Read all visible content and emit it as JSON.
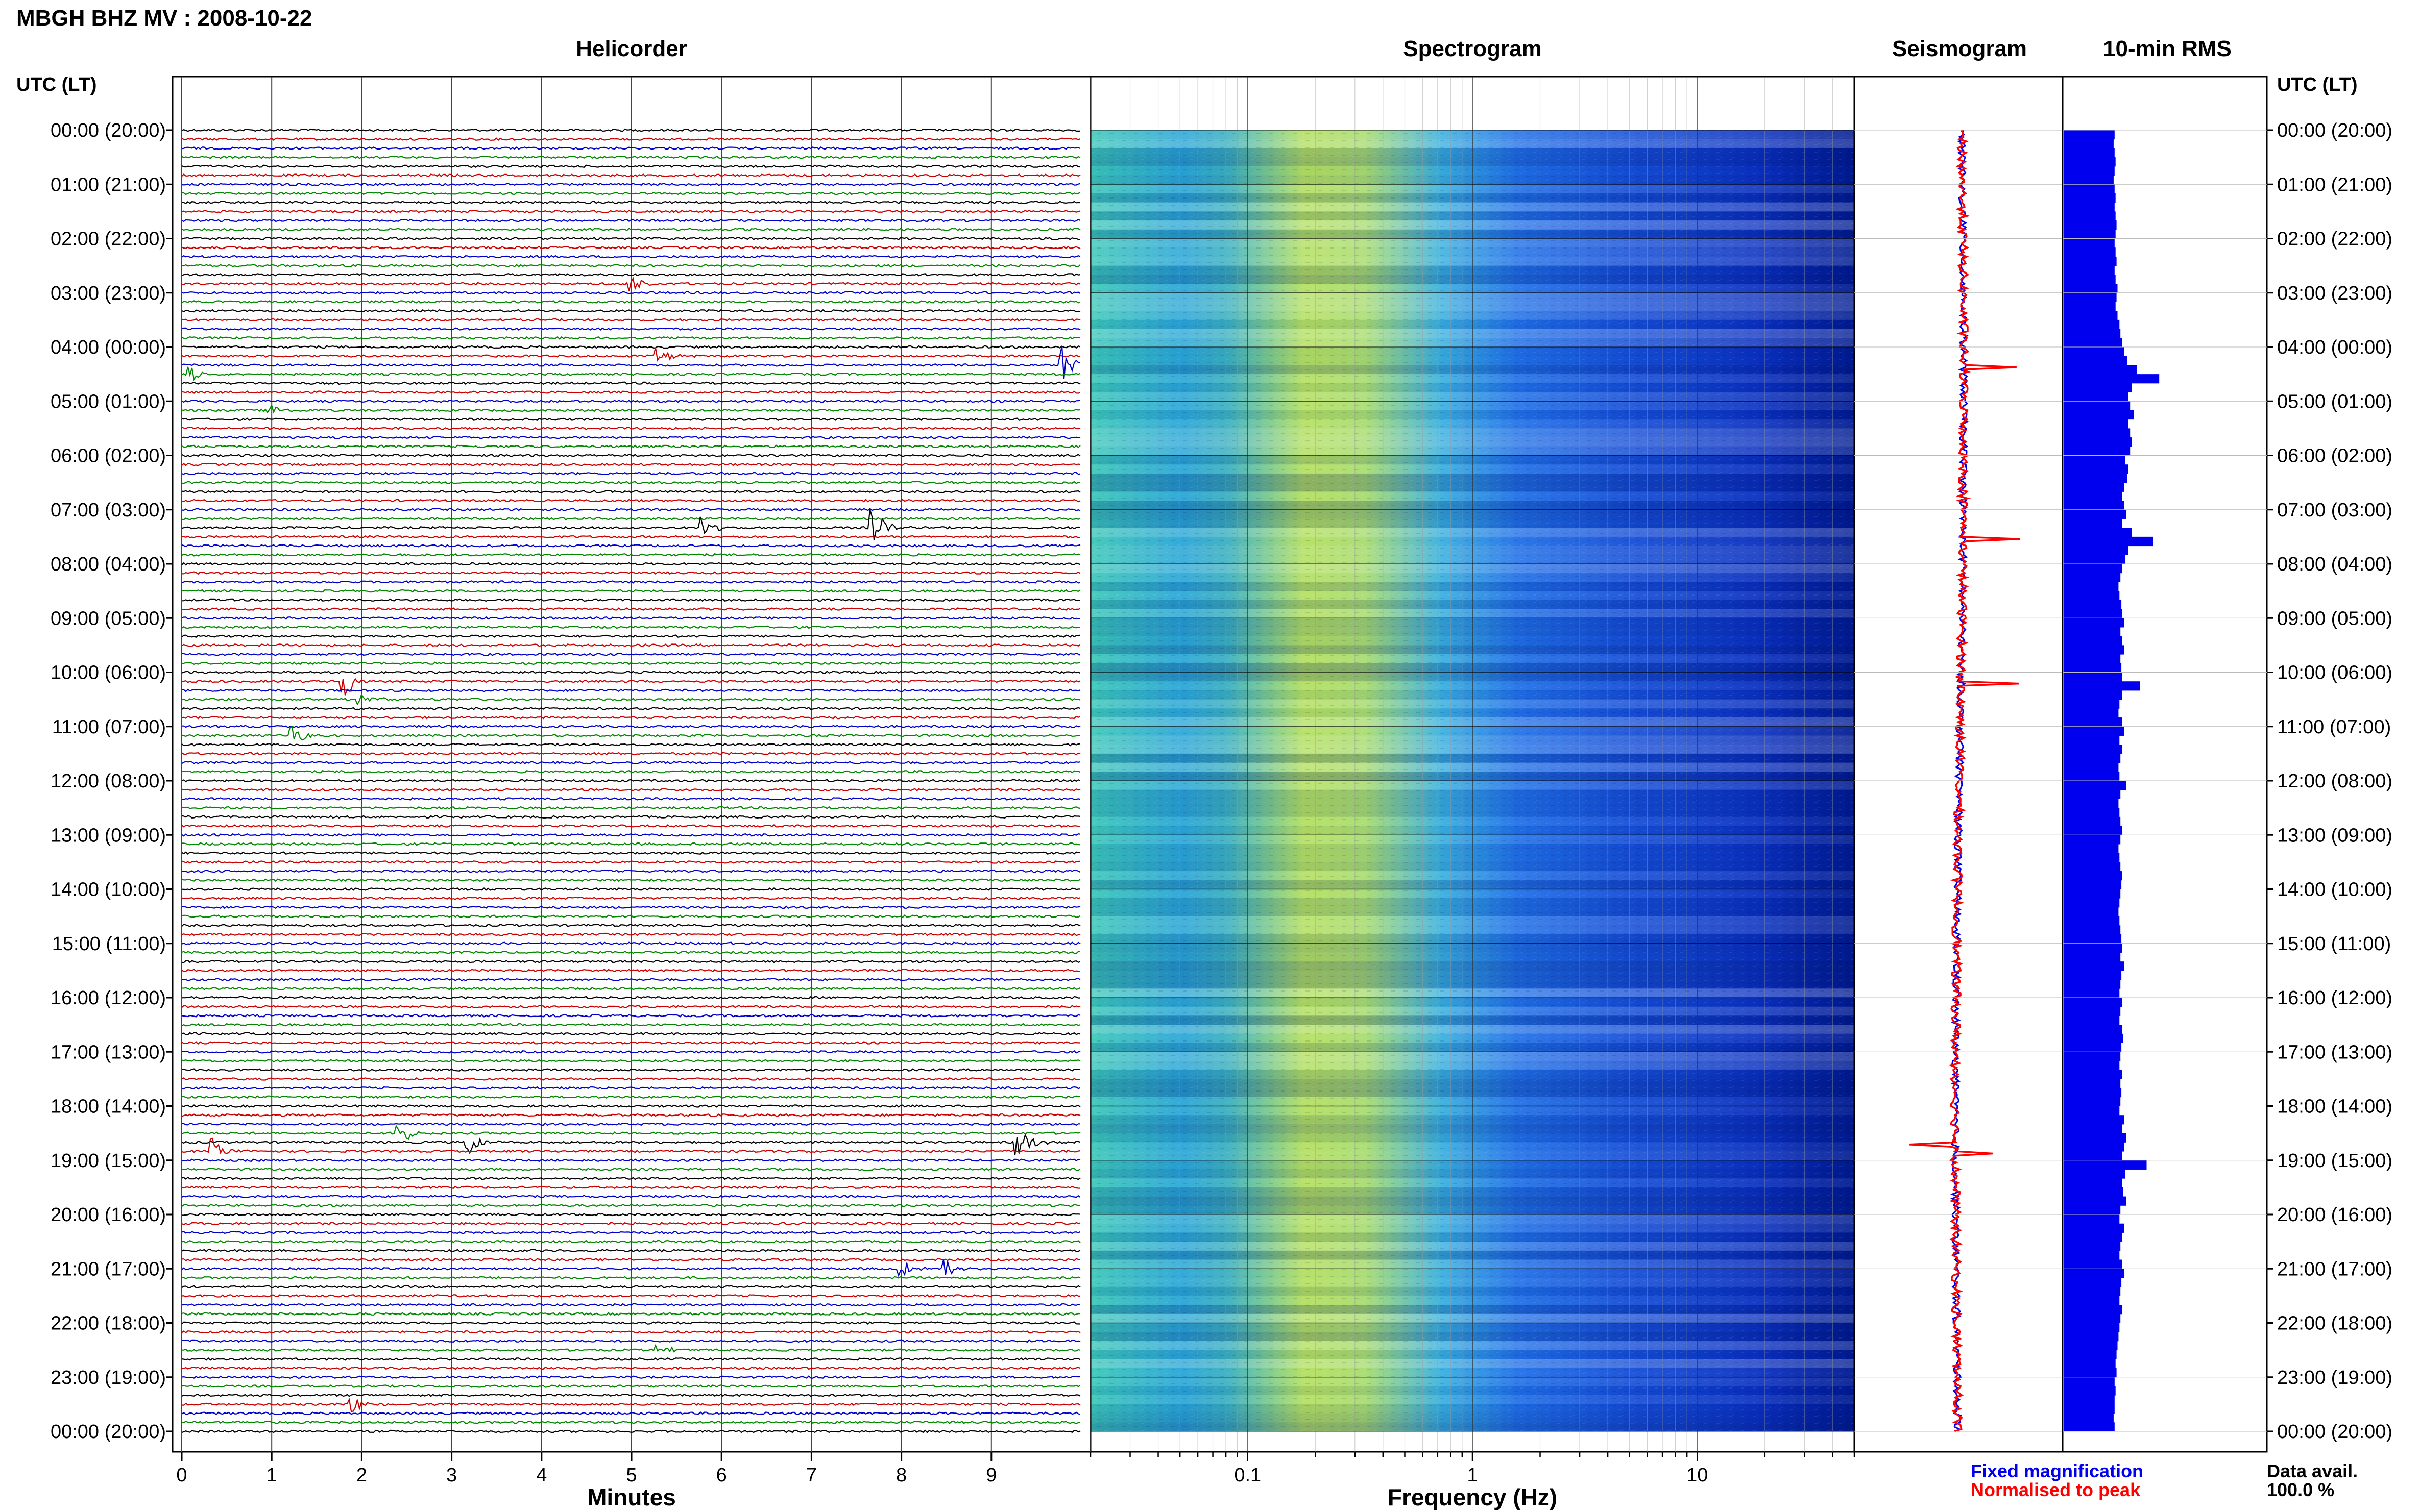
{
  "title": "MBGH BHZ MV : 2008-10-22",
  "utc_header": "UTC (LT)",
  "right_utc_header": "UTC (LT)",
  "data_avail_label": "Data avail.",
  "data_avail_value": "100.0 %",
  "colors": {
    "trace_cycle": [
      "#000000",
      "#cc0000",
      "#0000cc",
      "#008800"
    ],
    "rms_bar": "#0000ee",
    "seis_fixed": "#0000ee",
    "seis_norm": "#ff0000",
    "spectro_low": "#000080",
    "spectro_high": "#e8f020"
  },
  "chart_data": [
    {
      "type": "line",
      "panel": "helicorder",
      "title": "Helicorder",
      "xlabel": "Minutes",
      "ylabel": "",
      "x_ticks": [
        "0",
        "1",
        "2",
        "3",
        "4",
        "5",
        "6",
        "7",
        "8",
        "9"
      ],
      "xlim": [
        0,
        10
      ],
      "row_count": 145,
      "row_minutes": 10,
      "y_tick_labels": [
        "00:00 (20:00)",
        "01:00 (21:00)",
        "02:00 (22:00)",
        "03:00 (23:00)",
        "04:00 (00:00)",
        "05:00 (01:00)",
        "06:00 (02:00)",
        "07:00 (03:00)",
        "08:00 (04:00)",
        "09:00 (05:00)",
        "10:00 (06:00)",
        "11:00 (07:00)",
        "12:00 (08:00)",
        "13:00 (09:00)",
        "14:00 (10:00)",
        "15:00 (11:00)",
        "16:00 (12:00)",
        "17:00 (13:00)",
        "18:00 (14:00)",
        "19:00 (15:00)",
        "20:00 (16:00)",
        "21:00 (17:00)",
        "22:00 (18:00)",
        "23:00 (19:00)",
        "00:00 (20:00)"
      ],
      "events": [
        {
          "row": 17,
          "minute": 5.0,
          "amp": 3
        },
        {
          "row": 25,
          "minute": 5.3,
          "amp": 3
        },
        {
          "row": 26,
          "minute": 9.8,
          "amp": 7
        },
        {
          "row": 27,
          "minute": 0.1,
          "amp": 3
        },
        {
          "row": 31,
          "minute": 1.0,
          "amp": 2
        },
        {
          "row": 44,
          "minute": 7.7,
          "amp": 6
        },
        {
          "row": 44,
          "minute": 5.8,
          "amp": 4
        },
        {
          "row": 61,
          "minute": 1.8,
          "amp": 6
        },
        {
          "row": 63,
          "minute": 2.0,
          "amp": 2
        },
        {
          "row": 67,
          "minute": 1.25,
          "amp": 4
        },
        {
          "row": 111,
          "minute": 2.4,
          "amp": 5
        },
        {
          "row": 112,
          "minute": 3.2,
          "amp": 4
        },
        {
          "row": 112,
          "minute": 9.3,
          "amp": 6
        },
        {
          "row": 113,
          "minute": 0.35,
          "amp": 4
        },
        {
          "row": 126,
          "minute": 8.0,
          "amp": 3
        },
        {
          "row": 126,
          "minute": 8.5,
          "amp": 3
        },
        {
          "row": 135,
          "minute": 5.3,
          "amp": 2
        },
        {
          "row": 141,
          "minute": 1.9,
          "amp": 3
        }
      ]
    },
    {
      "type": "heatmap",
      "panel": "spectrogram",
      "title": "Spectrogram",
      "xlabel": "Frequency (Hz)",
      "ylabel": "",
      "x_scale": "log",
      "xlim": [
        0.02,
        50
      ],
      "x_ticks": [
        {
          "value": 0.1,
          "label": "0.1"
        },
        {
          "value": 1,
          "label": "1"
        },
        {
          "value": 10,
          "label": "10"
        }
      ],
      "peak_band_hz": [
        0.2,
        0.6
      ]
    },
    {
      "type": "line",
      "panel": "seismogram",
      "title": "Seismogram",
      "legend": [
        "Fixed magnification",
        "Normalised to peak"
      ],
      "legend_position": "bottom",
      "spikes_rows": [
        26,
        45,
        61,
        112,
        113
      ]
    },
    {
      "type": "bar",
      "panel": "rms",
      "title": "10-min RMS",
      "orientation": "horizontal",
      "xlim": [
        0,
        1
      ],
      "rows": 144,
      "values": [
        0.52,
        0.51,
        0.52,
        0.53,
        0.52,
        0.51,
        0.52,
        0.53,
        0.52,
        0.53,
        0.54,
        0.53,
        0.52,
        0.53,
        0.54,
        0.52,
        0.53,
        0.55,
        0.54,
        0.53,
        0.55,
        0.57,
        0.58,
        0.6,
        0.62,
        0.65,
        0.75,
        0.98,
        0.7,
        0.66,
        0.68,
        0.72,
        0.66,
        0.68,
        0.7,
        0.68,
        0.63,
        0.66,
        0.65,
        0.62,
        0.6,
        0.62,
        0.64,
        0.6,
        0.7,
        0.92,
        0.66,
        0.63,
        0.6,
        0.58,
        0.56,
        0.57,
        0.59,
        0.6,
        0.62,
        0.58,
        0.6,
        0.62,
        0.58,
        0.59,
        0.6,
        0.78,
        0.6,
        0.57,
        0.56,
        0.6,
        0.62,
        0.57,
        0.6,
        0.58,
        0.56,
        0.57,
        0.64,
        0.58,
        0.56,
        0.57,
        0.58,
        0.6,
        0.58,
        0.56,
        0.57,
        0.58,
        0.6,
        0.59,
        0.58,
        0.57,
        0.56,
        0.57,
        0.58,
        0.59,
        0.6,
        0.58,
        0.62,
        0.59,
        0.58,
        0.57,
        0.6,
        0.58,
        0.57,
        0.6,
        0.61,
        0.59,
        0.58,
        0.57,
        0.6,
        0.58,
        0.59,
        0.58,
        0.57,
        0.62,
        0.6,
        0.64,
        0.62,
        0.6,
        0.85,
        0.63,
        0.6,
        0.61,
        0.64,
        0.58,
        0.57,
        0.62,
        0.6,
        0.58,
        0.57,
        0.6,
        0.62,
        0.59,
        0.58,
        0.57,
        0.6,
        0.58,
        0.57,
        0.56,
        0.55,
        0.54,
        0.53,
        0.54,
        0.52,
        0.53,
        0.52,
        0.52,
        0.51,
        0.52
      ]
    }
  ]
}
